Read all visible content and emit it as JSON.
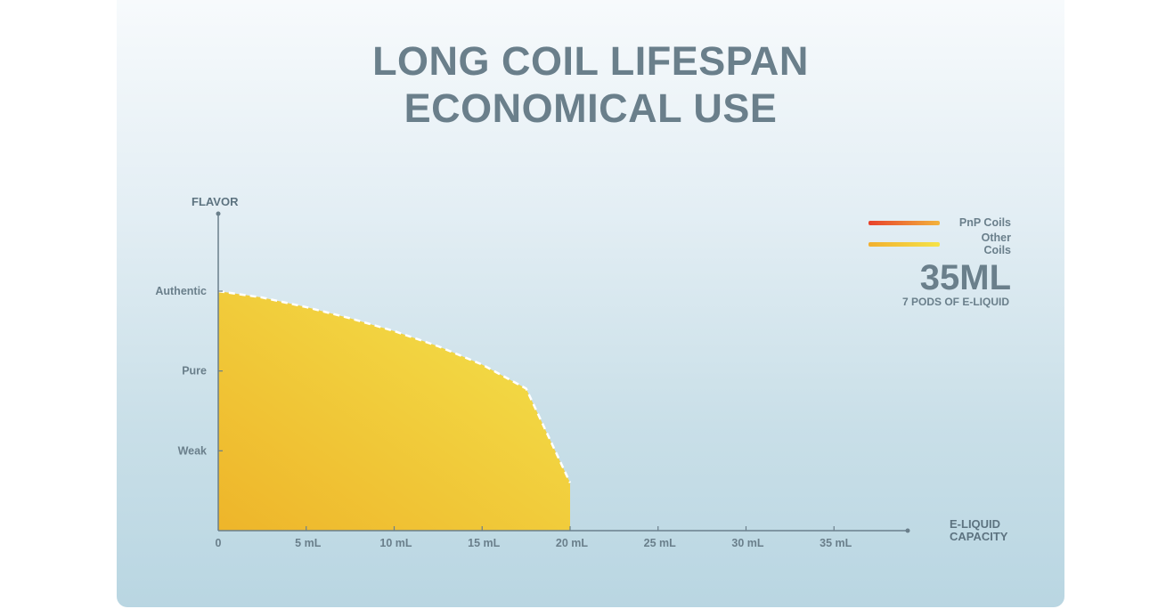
{
  "title": {
    "line1": "LONG COIL LIFESPAN",
    "line2": "ECONOMICAL USE"
  },
  "legend": [
    {
      "name": "PnP Coils",
      "color_start": "#e8412b",
      "color_end": "#f3b33c"
    },
    {
      "name": "Other Coils",
      "color_start": "#f2b02f",
      "color_end": "#f5e348"
    }
  ],
  "highlight": {
    "value": "35ML",
    "subtitle": "7 PODS OF E-LIQUID"
  },
  "chart_data": {
    "type": "area",
    "ylabel": "FLAVOR",
    "xlabel_lines": [
      "E-LIQUID",
      "CAPACITY"
    ],
    "y_levels": [
      {
        "label": "Weak",
        "value": 1
      },
      {
        "label": "Pure",
        "value": 2
      },
      {
        "label": "Authentic",
        "value": 3
      }
    ],
    "ylim": [
      0,
      3
    ],
    "x_ticks": [
      "0",
      "5 mL",
      "10 mL",
      "15 mL",
      "20 mL",
      "25 mL",
      "30 mL",
      "35 mL"
    ],
    "xlim": [
      0,
      37
    ],
    "grid": false,
    "series": [
      {
        "name": "Other Coils",
        "x": [
          0,
          2.5,
          5,
          7.5,
          10,
          12.5,
          15,
          17.5,
          20
        ],
        "y": [
          3.0,
          2.92,
          2.8,
          2.66,
          2.5,
          2.31,
          2.08,
          1.78,
          0.6
        ]
      }
    ],
    "colors": {
      "fill_start": "#efb72c",
      "fill_end": "#f3e048",
      "axis": "#6a7f8b",
      "curve": "#ffffff"
    }
  }
}
